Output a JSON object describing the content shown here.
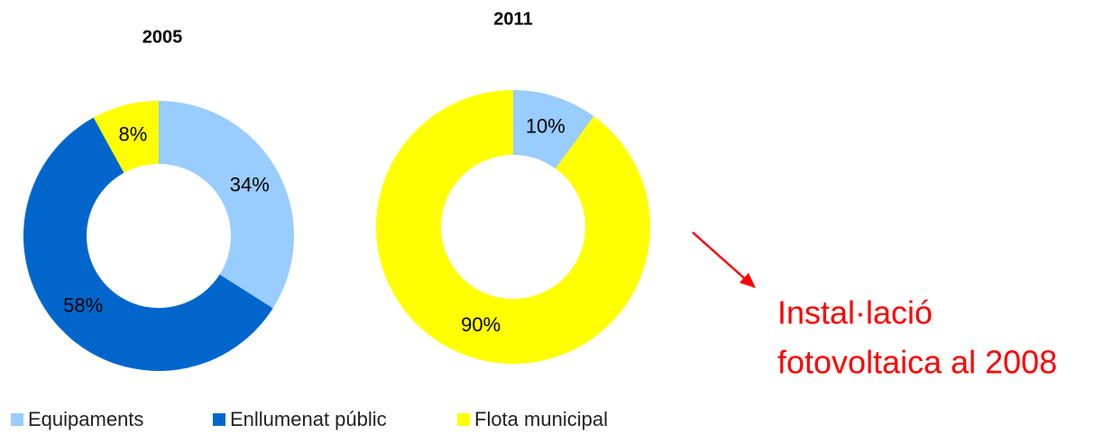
{
  "chart_data": [
    {
      "type": "donut",
      "title": "2005",
      "categories": [
        "Equipaments",
        "Enllumenat públic",
        "Flota municipal"
      ],
      "values": [
        34,
        58,
        8
      ],
      "value_labels": [
        "34%",
        "58%",
        "8%"
      ],
      "colors": [
        "#99ccff",
        "#0066cc",
        "#ffff00"
      ]
    },
    {
      "type": "donut",
      "title": "2011",
      "categories": [
        "Equipaments",
        "Flota municipal"
      ],
      "values": [
        10,
        90
      ],
      "value_labels": [
        "10%",
        "90%"
      ]
    }
  ],
  "annotation": {
    "lines": [
      "Instal·lació",
      "fotovoltaica al 2008"
    ],
    "color": "#ff0000"
  }
}
